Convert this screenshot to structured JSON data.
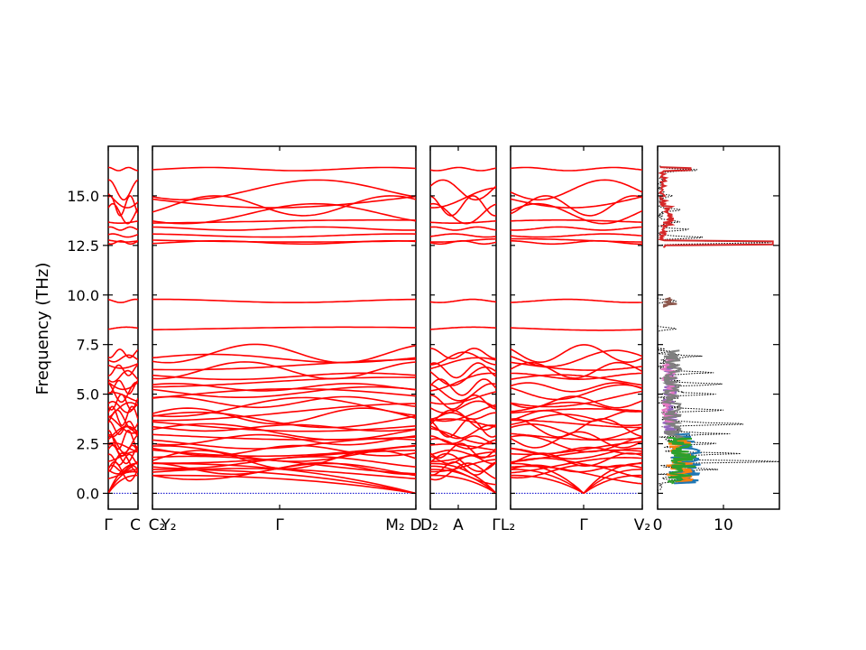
{
  "chart_data": {
    "type": "line",
    "ylabel": "Frequency (THz)",
    "ylim": [
      -0.8,
      17.5
    ],
    "yticks": [
      "0.0",
      "2.5",
      "5.0",
      "7.5",
      "10.0",
      "12.5",
      "15.0"
    ],
    "band_color": "#ff0000",
    "zero_line_color": "#0000cc",
    "band_paths": [
      {
        "x_labels": [
          "Γ",
          "C"
        ]
      },
      {
        "x_labels": [
          "C₂",
          "Y₂",
          "Γ",
          "M₂",
          "D"
        ]
      },
      {
        "x_labels": [
          "D₂",
          "A",
          "Γ"
        ]
      },
      {
        "x_labels": [
          "L₂",
          "Γ",
          "V₂"
        ]
      }
    ],
    "dos": {
      "xlim": [
        0,
        18.5
      ],
      "xticks": [
        "0",
        "10"
      ],
      "series_colors": [
        "#000000",
        "#1f77b4",
        "#ff7f0e",
        "#2ca02c",
        "#d62728",
        "#9467bd",
        "#8c564b",
        "#e377c2",
        "#7f7f7f"
      ],
      "total_peaks": [
        {
          "f": 0.6,
          "v": 2.5
        },
        {
          "f": 1.2,
          "v": 8.0
        },
        {
          "f": 1.6,
          "v": 17.0
        },
        {
          "f": 2.0,
          "v": 11.0
        },
        {
          "f": 2.5,
          "v": 8.0
        },
        {
          "f": 3.0,
          "v": 9.0
        },
        {
          "f": 3.5,
          "v": 13.0
        },
        {
          "f": 4.2,
          "v": 9.0
        },
        {
          "f": 5.0,
          "v": 8.0
        },
        {
          "f": 5.5,
          "v": 7.0
        },
        {
          "f": 6.1,
          "v": 6.0
        },
        {
          "f": 6.9,
          "v": 4.5
        },
        {
          "f": 8.3,
          "v": 3.0
        },
        {
          "f": 9.7,
          "v": 3.0
        },
        {
          "f": 12.65,
          "v": 17.5
        },
        {
          "f": 12.9,
          "v": 7.0
        },
        {
          "f": 13.3,
          "v": 4.0
        },
        {
          "f": 13.7,
          "v": 3.0
        },
        {
          "f": 14.3,
          "v": 3.5
        },
        {
          "f": 15.0,
          "v": 2.0
        },
        {
          "f": 16.3,
          "v": 5.5
        }
      ]
    }
  }
}
